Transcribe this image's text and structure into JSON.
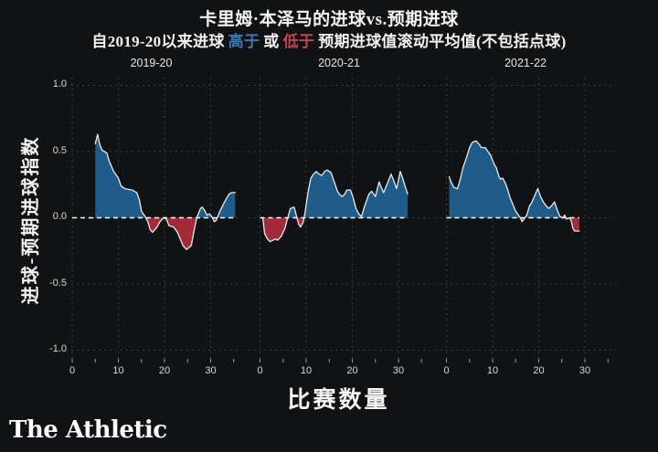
{
  "title": "卡里姆·本泽马的进球vs.预期进球",
  "subtitle": {
    "prefix": "自2019-20以来进球",
    "above_word": "高于",
    "middle": "或",
    "below_word": "低于",
    "suffix": "预期进球值滚动平均值(不包括点球)"
  },
  "branding": {
    "logo_text": "The Athletic"
  },
  "colors": {
    "background": "#111213",
    "above_fill": "#1f5c8a",
    "below_fill": "#a32a38",
    "line": "#eaeaea",
    "zero_line": "#ffffff",
    "grid": "#3d3d3d",
    "above_text": "#3a78bb",
    "below_text": "#c4454f",
    "text": "#f5f5f5",
    "muted_text": "#d9d9d9"
  },
  "chart_data": {
    "type": "area",
    "title": "卡里姆·本泽马的进球vs.预期进球",
    "subtitle": "自2019-20以来进球 高于 或 低于 预期进球值滚动平均值(不包括点球)",
    "xlabel": "比赛数量",
    "ylabel": "进球-预期进球指数",
    "ylim": [
      -1.0,
      1.0
    ],
    "yticks": [
      1.0,
      0.5,
      0.0,
      -0.5,
      -1.0
    ],
    "ytick_labels": [
      "1.0",
      "0.5",
      "0.0",
      "-0.5",
      "-1.0"
    ],
    "xticks": [
      0,
      10,
      20,
      30
    ],
    "minor_xtick_step": 5,
    "grid": "dotted",
    "zero_line": 0.0,
    "legend": "none",
    "facets": [
      {
        "label": "2019-20",
        "x": [
          5,
          5.5,
          6,
          6.5,
          7,
          7.5,
          8,
          9,
          10,
          10.6,
          11.4,
          13,
          14,
          14.6,
          15,
          15.8,
          16.4,
          16.9,
          17.4,
          18.4,
          19,
          19.8,
          20.4,
          21,
          22,
          22.8,
          23.4,
          24,
          24.8,
          25.8,
          26.4,
          27,
          27.8,
          28.2,
          28.8,
          29.2,
          29.8,
          30.4,
          30.8,
          31.2,
          32,
          33,
          34,
          34.7,
          35.3
        ],
        "y": [
          0.56,
          0.63,
          0.55,
          0.51,
          0.5,
          0.49,
          0.43,
          0.35,
          0.3,
          0.24,
          0.22,
          0.21,
          0.19,
          0.13,
          0.05,
          0.01,
          -0.03,
          -0.09,
          -0.11,
          -0.07,
          -0.03,
          0.0,
          -0.01,
          -0.06,
          -0.07,
          -0.11,
          -0.16,
          -0.21,
          -0.24,
          -0.21,
          -0.1,
          0.0,
          0.07,
          0.08,
          0.05,
          0.02,
          0.03,
          0.0,
          -0.03,
          -0.02,
          0.05,
          0.12,
          0.18,
          0.19,
          0.19
        ]
      },
      {
        "label": "2020-21",
        "x": [
          0.6,
          1,
          1.6,
          2.2,
          2.8,
          3.4,
          3.8,
          4.6,
          5.4,
          6,
          6.6,
          7.4,
          8,
          8.4,
          8.8,
          9.4,
          9.8,
          10.4,
          11,
          11.6,
          12.2,
          12.8,
          13.4,
          14,
          14.6,
          15.4,
          15.8,
          16.2,
          16.8,
          17.4,
          17.8,
          18.4,
          18.8,
          19.6,
          20.2,
          20.8,
          21.4,
          22,
          22.6,
          23.2,
          23.6,
          24.2,
          25,
          25.8,
          26.4,
          26.8,
          27.6,
          28.4,
          29,
          29.6,
          30.4,
          31,
          31.6,
          32
        ],
        "y": [
          0.0,
          -0.12,
          -0.16,
          -0.18,
          -0.17,
          -0.16,
          -0.17,
          -0.14,
          -0.08,
          0.0,
          0.07,
          0.08,
          0.0,
          -0.05,
          -0.07,
          -0.03,
          0.05,
          0.19,
          0.3,
          0.33,
          0.35,
          0.33,
          0.32,
          0.35,
          0.36,
          0.34,
          0.3,
          0.26,
          0.2,
          0.17,
          0.16,
          0.18,
          0.21,
          0.21,
          0.15,
          0.07,
          0.03,
          0.01,
          0.08,
          0.14,
          0.18,
          0.2,
          0.16,
          0.27,
          0.22,
          0.19,
          0.26,
          0.33,
          0.28,
          0.22,
          0.35,
          0.29,
          0.22,
          0.18
        ]
      },
      {
        "label": "2021-22",
        "x": [
          0.6,
          1,
          1.6,
          2.4,
          3,
          3.6,
          4.4,
          5,
          5.6,
          6.4,
          7,
          7.6,
          8.4,
          9,
          9.6,
          10.4,
          10.8,
          11.4,
          11.8,
          12.2,
          12.8,
          13.2,
          13.8,
          14.4,
          15,
          15.6,
          16,
          16.4,
          17,
          17.4,
          18,
          18.4,
          18.8,
          19.4,
          19.8,
          20.4,
          21,
          21.6,
          22.2,
          22.8,
          23.4,
          24,
          24.6,
          25.2,
          25.6,
          26,
          26.6,
          27,
          27.4,
          27.8,
          28.8
        ],
        "y": [
          0.31,
          0.27,
          0.23,
          0.22,
          0.29,
          0.38,
          0.46,
          0.53,
          0.57,
          0.58,
          0.56,
          0.53,
          0.53,
          0.5,
          0.47,
          0.4,
          0.38,
          0.31,
          0.29,
          0.3,
          0.26,
          0.22,
          0.15,
          0.1,
          0.05,
          0.02,
          0.0,
          -0.03,
          0.0,
          0.02,
          0.09,
          0.11,
          0.14,
          0.19,
          0.22,
          0.16,
          0.12,
          0.09,
          0.07,
          0.09,
          0.12,
          0.06,
          0.01,
          0.0,
          0.02,
          -0.01,
          0.0,
          -0.02,
          -0.08,
          -0.1,
          -0.1
        ]
      }
    ]
  }
}
